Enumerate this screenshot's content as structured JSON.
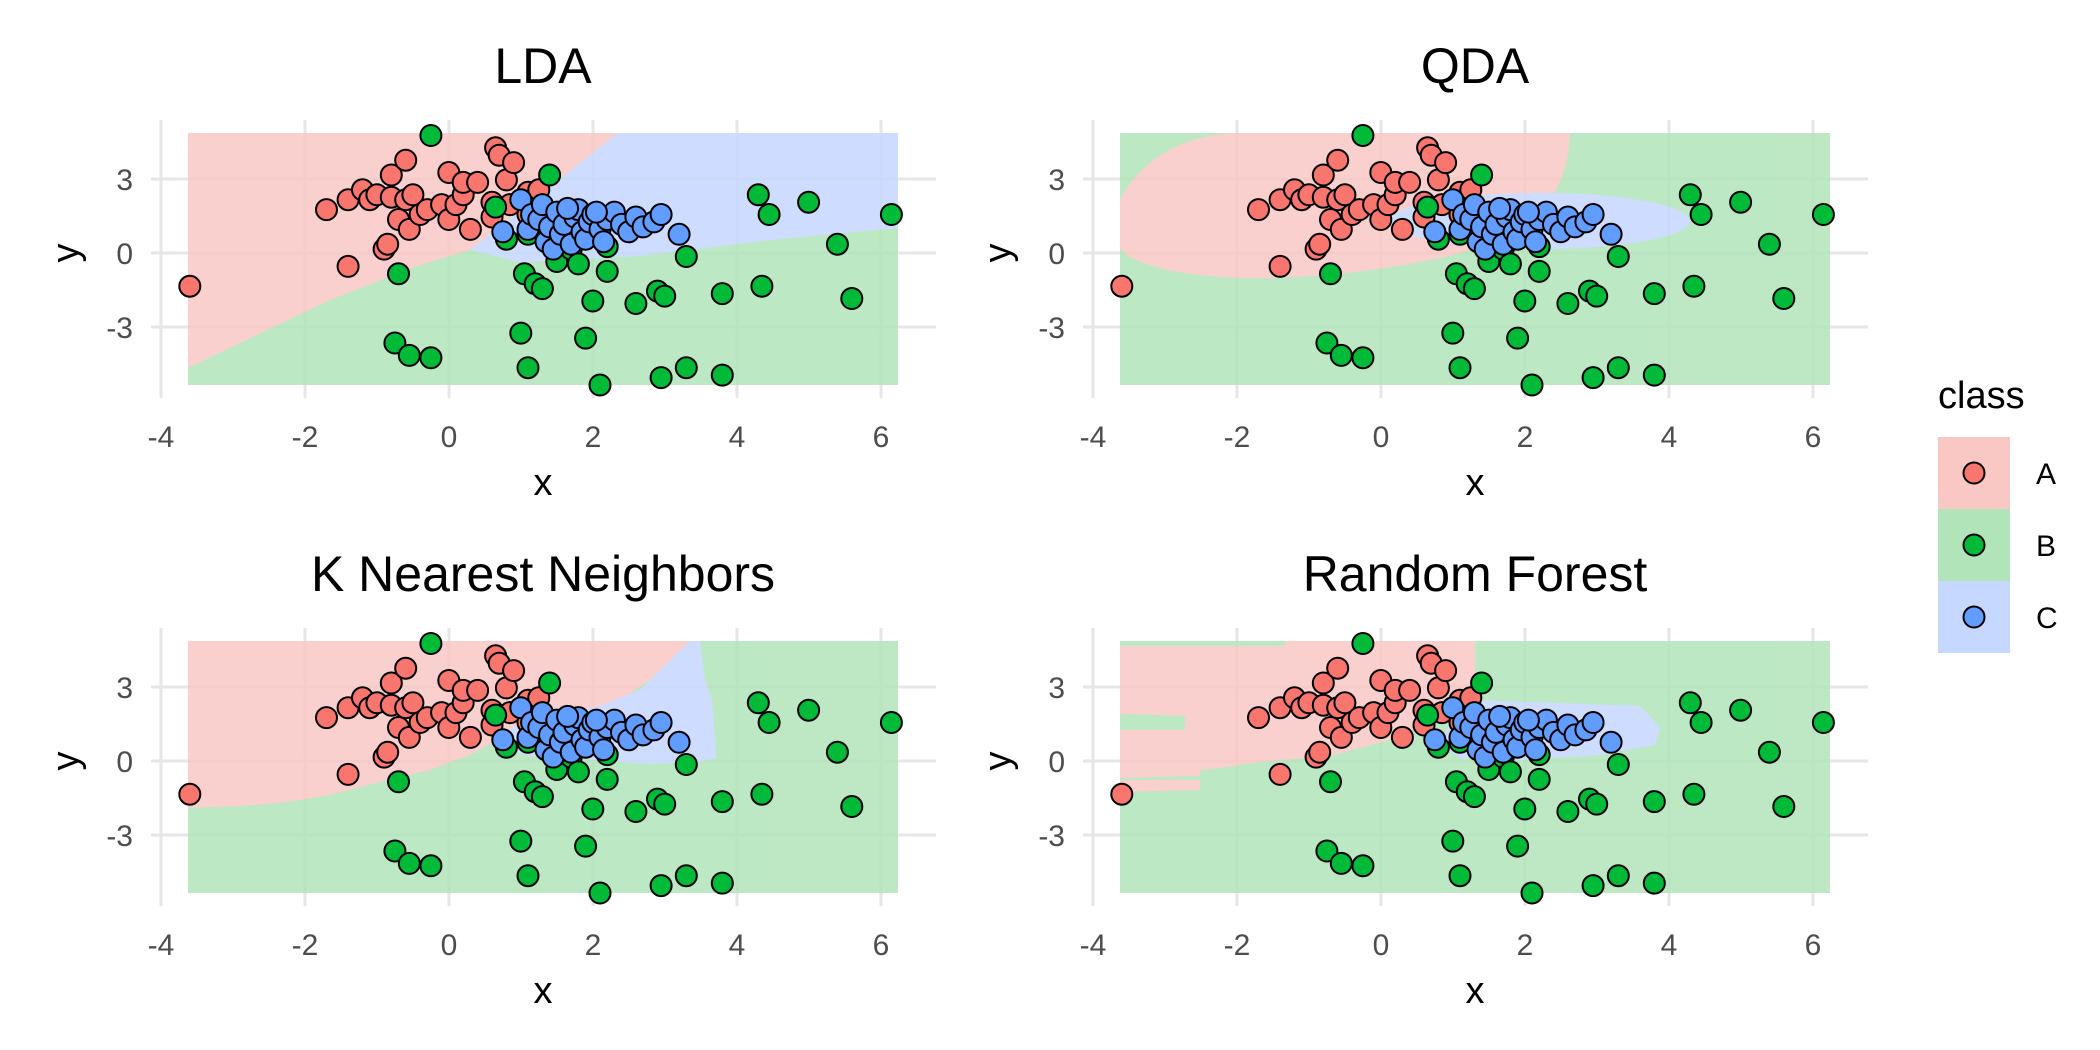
{
  "colors": {
    "A_fill": "#F8766D",
    "B_fill": "#00BA38",
    "C_fill": "#619CFF",
    "A_region": "#F9C8C5",
    "B_region": "#B1E4B9",
    "C_region": "#C6D8FF",
    "grid": "#EBEBEB",
    "point_outline": "#000000"
  },
  "legend": {
    "title": "class",
    "entries": [
      {
        "label": "A",
        "point_color": "#F8766D",
        "region_color": "#F9C8C5"
      },
      {
        "label": "B",
        "point_color": "#00BA38",
        "region_color": "#B1E4B9"
      },
      {
        "label": "C",
        "point_color": "#619CFF",
        "region_color": "#C6D8FF"
      }
    ]
  },
  "chart_data": [
    {
      "type": "scatter",
      "title": "LDA",
      "xlabel": "x",
      "ylabel": "y",
      "xlim": [
        -4,
        6.2
      ],
      "ylim": [
        -5.3,
        4.9
      ],
      "x_ticks": [
        -4,
        -2,
        0,
        2,
        4,
        6
      ],
      "y_ticks": [
        -3,
        0,
        3
      ],
      "grid": true
    },
    {
      "type": "scatter",
      "title": "QDA",
      "xlabel": "x",
      "ylabel": "y",
      "xlim": [
        -4,
        6.2
      ],
      "ylim": [
        -5.3,
        4.9
      ],
      "x_ticks": [
        -4,
        -2,
        0,
        2,
        4,
        6
      ],
      "y_ticks": [
        -3,
        0,
        3
      ],
      "grid": true
    },
    {
      "type": "scatter",
      "title": "K Nearest Neighbors",
      "xlabel": "x",
      "ylabel": "y",
      "xlim": [
        -4,
        6.2
      ],
      "ylim": [
        -5.3,
        4.9
      ],
      "x_ticks": [
        -4,
        -2,
        0,
        2,
        4,
        6
      ],
      "y_ticks": [
        -3,
        0,
        3
      ],
      "grid": true
    },
    {
      "type": "scatter",
      "title": "Random Forest",
      "xlabel": "x",
      "ylabel": "y",
      "xlim": [
        -4,
        6.2
      ],
      "ylim": [
        -5.3,
        4.9
      ],
      "x_ticks": [
        -4,
        -2,
        0,
        2,
        4,
        6
      ],
      "y_ticks": [
        -3,
        0,
        3
      ],
      "grid": true
    }
  ],
  "points": {
    "A": [
      [
        -3.6,
        -1.3
      ],
      [
        -1.7,
        1.8
      ],
      [
        -1.4,
        -0.5
      ],
      [
        -1.4,
        2.2
      ],
      [
        -1.2,
        2.6
      ],
      [
        -1.1,
        2.2
      ],
      [
        -1.0,
        2.4
      ],
      [
        -0.9,
        0.2
      ],
      [
        -0.85,
        0.4
      ],
      [
        -0.8,
        2.3
      ],
      [
        -0.8,
        3.2
      ],
      [
        -0.7,
        1.4
      ],
      [
        -0.6,
        2.2
      ],
      [
        -0.6,
        3.8
      ],
      [
        -0.55,
        1.0
      ],
      [
        -0.5,
        2.4
      ],
      [
        -0.4,
        1.6
      ],
      [
        -0.3,
        1.8
      ],
      [
        -0.1,
        2.0
      ],
      [
        0.0,
        1.4
      ],
      [
        0.0,
        3.3
      ],
      [
        0.1,
        2.0
      ],
      [
        0.2,
        2.4
      ],
      [
        0.2,
        2.9
      ],
      [
        0.3,
        1.0
      ],
      [
        0.4,
        2.9
      ],
      [
        0.6,
        1.5
      ],
      [
        0.65,
        4.3
      ],
      [
        0.7,
        4.0
      ],
      [
        0.8,
        3.0
      ],
      [
        0.85,
        2.0
      ],
      [
        0.9,
        3.7
      ],
      [
        1.1,
        1.6
      ],
      [
        1.1,
        2.5
      ],
      [
        0.6,
        2.1
      ],
      [
        1.3,
        1.5
      ],
      [
        1.25,
        2.6
      ]
    ],
    "B": [
      [
        -0.25,
        4.8
      ],
      [
        -0.7,
        -0.8
      ],
      [
        -0.75,
        -3.6
      ],
      [
        -0.55,
        -4.1
      ],
      [
        -0.25,
        -4.2
      ],
      [
        0.65,
        1.9
      ],
      [
        0.8,
        0.6
      ],
      [
        1.0,
        -3.2
      ],
      [
        1.05,
        -0.8
      ],
      [
        1.1,
        -4.6
      ],
      [
        1.2,
        -1.2
      ],
      [
        1.3,
        -1.4
      ],
      [
        1.4,
        3.2
      ],
      [
        1.5,
        -0.3
      ],
      [
        1.7,
        0.2
      ],
      [
        1.8,
        -0.4
      ],
      [
        1.9,
        -3.4
      ],
      [
        2.0,
        -1.9
      ],
      [
        2.1,
        -5.3
      ],
      [
        2.2,
        -0.7
      ],
      [
        2.6,
        -2.0
      ],
      [
        2.9,
        -1.5
      ],
      [
        2.95,
        -5.0
      ],
      [
        3.0,
        -1.7
      ],
      [
        3.3,
        -4.6
      ],
      [
        3.3,
        -0.1
      ],
      [
        3.8,
        -4.9
      ],
      [
        3.8,
        -1.6
      ],
      [
        4.35,
        -1.3
      ],
      [
        4.3,
        2.4
      ],
      [
        4.45,
        1.6
      ],
      [
        5.0,
        2.1
      ],
      [
        5.4,
        0.4
      ],
      [
        5.6,
        -1.8
      ],
      [
        6.15,
        1.6
      ],
      [
        1.1,
        0.8
      ],
      [
        1.6,
        0.9
      ],
      [
        2.2,
        0.3
      ]
    ],
    "C": [
      [
        0.75,
        0.9
      ],
      [
        1.0,
        2.2
      ],
      [
        1.1,
        1.0
      ],
      [
        1.15,
        1.6
      ],
      [
        1.25,
        1.4
      ],
      [
        1.3,
        2.0
      ],
      [
        1.35,
        0.5
      ],
      [
        1.4,
        1.1
      ],
      [
        1.45,
        0.2
      ],
      [
        1.5,
        1.7
      ],
      [
        1.55,
        0.8
      ],
      [
        1.6,
        1.2
      ],
      [
        1.7,
        0.4
      ],
      [
        1.75,
        1.5
      ],
      [
        1.8,
        1.8
      ],
      [
        1.85,
        0.9
      ],
      [
        1.9,
        0.6
      ],
      [
        1.95,
        1.3
      ],
      [
        2.0,
        1.6
      ],
      [
        2.1,
        1.0
      ],
      [
        2.15,
        0.5
      ],
      [
        2.2,
        1.4
      ],
      [
        2.3,
        1.7
      ],
      [
        2.4,
        1.2
      ],
      [
        2.5,
        0.9
      ],
      [
        2.6,
        1.5
      ],
      [
        2.7,
        1.1
      ],
      [
        2.85,
        1.3
      ],
      [
        2.95,
        1.6
      ],
      [
        3.2,
        0.8
      ],
      [
        1.65,
        1.85
      ],
      [
        2.05,
        1.7
      ]
    ]
  }
}
